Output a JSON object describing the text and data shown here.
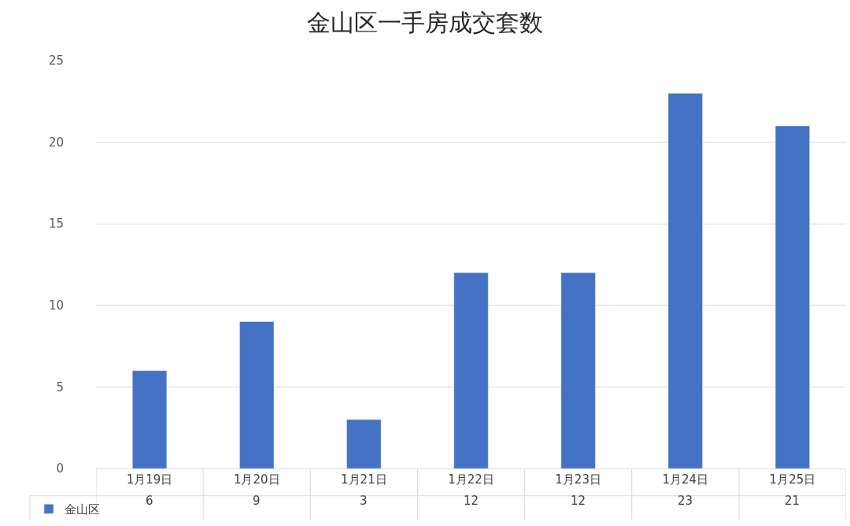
{
  "chart_data": {
    "type": "bar",
    "title": "金山区一手房成交套数",
    "categories": [
      "1月19日",
      "1月20日",
      "1月21日",
      "1月22日",
      "1月23日",
      "1月24日",
      "1月25日"
    ],
    "series": [
      {
        "name": "金山区",
        "color": "#4472c4",
        "values": [
          6,
          9,
          3,
          12,
          12,
          23,
          21
        ]
      }
    ],
    "ylim": [
      0,
      25
    ],
    "yticks": [
      0,
      5,
      10,
      15,
      20,
      25
    ],
    "grid": "y",
    "legend": "bottom left",
    "data_labels": true
  }
}
